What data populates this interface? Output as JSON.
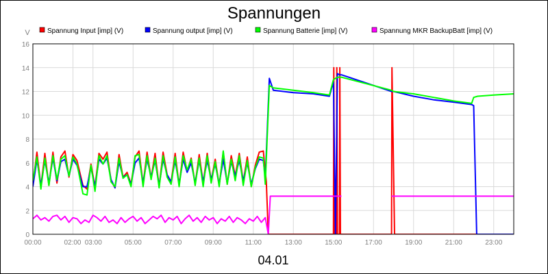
{
  "chart_data": {
    "type": "line",
    "title": "Spannungen",
    "ylabel": "V",
    "xlabel": "04.01",
    "ylim": [
      0,
      16
    ],
    "yticks": [
      0,
      2,
      4,
      6,
      8,
      10,
      12,
      14,
      16
    ],
    "xlim_hours": [
      0,
      24
    ],
    "xticks": [
      "00:00",
      "02:00",
      "03:00",
      "05:00",
      "07:00",
      "09:00",
      "11:00",
      "13:00",
      "15:00",
      "17:00",
      "19:00",
      "21:00",
      "23:00"
    ],
    "grid": true,
    "legend_position": "top",
    "series": [
      {
        "name": "Spannung Input [imp] (V)",
        "color": "#ff0000",
        "points": [
          [
            0.0,
            4.2
          ],
          [
            0.2,
            6.9
          ],
          [
            0.4,
            4.0
          ],
          [
            0.6,
            6.8
          ],
          [
            0.8,
            4.1
          ],
          [
            1.0,
            6.9
          ],
          [
            1.2,
            4.3
          ],
          [
            1.4,
            6.5
          ],
          [
            1.6,
            7.0
          ],
          [
            1.8,
            4.8
          ],
          [
            2.0,
            6.7
          ],
          [
            2.2,
            6.2
          ],
          [
            2.5,
            4.1
          ],
          [
            2.7,
            3.8
          ],
          [
            2.9,
            5.9
          ],
          [
            3.1,
            4.0
          ],
          [
            3.3,
            6.8
          ],
          [
            3.5,
            6.3
          ],
          [
            3.7,
            6.9
          ],
          [
            3.9,
            4.5
          ],
          [
            4.1,
            3.9
          ],
          [
            4.3,
            6.7
          ],
          [
            4.5,
            4.8
          ],
          [
            4.7,
            5.2
          ],
          [
            4.9,
            4.2
          ],
          [
            5.1,
            6.5
          ],
          [
            5.3,
            7.0
          ],
          [
            5.5,
            4.2
          ],
          [
            5.7,
            6.9
          ],
          [
            5.9,
            4.7
          ],
          [
            6.1,
            6.8
          ],
          [
            6.3,
            4.0
          ],
          [
            6.5,
            6.9
          ],
          [
            6.7,
            5.0
          ],
          [
            6.9,
            4.4
          ],
          [
            7.1,
            6.8
          ],
          [
            7.3,
            4.1
          ],
          [
            7.5,
            6.9
          ],
          [
            7.7,
            5.3
          ],
          [
            7.9,
            6.4
          ],
          [
            8.1,
            4.2
          ],
          [
            8.3,
            6.7
          ],
          [
            8.5,
            4.3
          ],
          [
            8.7,
            6.8
          ],
          [
            8.9,
            4.5
          ],
          [
            9.1,
            6.3
          ],
          [
            9.3,
            4.1
          ],
          [
            9.5,
            6.9
          ],
          [
            9.7,
            4.2
          ],
          [
            9.9,
            6.6
          ],
          [
            10.1,
            4.9
          ],
          [
            10.3,
            6.8
          ],
          [
            10.5,
            4.4
          ],
          [
            10.7,
            6.5
          ],
          [
            10.9,
            4.0
          ],
          [
            11.1,
            5.8
          ],
          [
            11.3,
            6.9
          ],
          [
            11.5,
            7.0
          ],
          [
            11.65,
            4.4
          ],
          [
            11.75,
            0.0
          ],
          [
            15.0,
            0.0
          ],
          [
            15.02,
            14.0
          ],
          [
            15.05,
            0.0
          ],
          [
            15.15,
            0.0
          ],
          [
            15.17,
            14.0
          ],
          [
            15.2,
            0.0
          ],
          [
            15.3,
            0.0
          ],
          [
            15.32,
            14.0
          ],
          [
            15.35,
            0.0
          ],
          [
            17.9,
            0.0
          ],
          [
            17.92,
            14.0
          ],
          [
            18.05,
            0.0
          ],
          [
            24.0,
            0.0
          ]
        ]
      },
      {
        "name": "Spannung output [imp] (V)",
        "color": "#0000ff",
        "points": [
          [
            0.0,
            4.0
          ],
          [
            0.2,
            6.3
          ],
          [
            0.4,
            4.1
          ],
          [
            0.6,
            6.2
          ],
          [
            0.8,
            4.3
          ],
          [
            1.0,
            6.4
          ],
          [
            1.2,
            4.5
          ],
          [
            1.4,
            6.1
          ],
          [
            1.6,
            6.3
          ],
          [
            1.8,
            4.9
          ],
          [
            2.0,
            6.3
          ],
          [
            2.2,
            5.8
          ],
          [
            2.5,
            4.0
          ],
          [
            2.7,
            4.0
          ],
          [
            2.9,
            5.6
          ],
          [
            3.1,
            4.0
          ],
          [
            3.3,
            6.3
          ],
          [
            3.5,
            5.9
          ],
          [
            3.7,
            6.4
          ],
          [
            3.9,
            4.6
          ],
          [
            4.1,
            3.9
          ],
          [
            4.3,
            6.1
          ],
          [
            4.5,
            4.8
          ],
          [
            4.7,
            5.0
          ],
          [
            4.9,
            4.2
          ],
          [
            5.1,
            6.0
          ],
          [
            5.3,
            6.4
          ],
          [
            5.5,
            4.3
          ],
          [
            5.7,
            6.3
          ],
          [
            5.9,
            4.8
          ],
          [
            6.1,
            6.2
          ],
          [
            6.3,
            4.1
          ],
          [
            6.5,
            6.3
          ],
          [
            6.7,
            5.0
          ],
          [
            6.9,
            4.4
          ],
          [
            7.1,
            6.2
          ],
          [
            7.3,
            4.2
          ],
          [
            7.5,
            6.3
          ],
          [
            7.7,
            5.2
          ],
          [
            7.9,
            6.0
          ],
          [
            8.1,
            4.3
          ],
          [
            8.3,
            6.2
          ],
          [
            8.5,
            4.4
          ],
          [
            8.7,
            6.2
          ],
          [
            8.9,
            4.6
          ],
          [
            9.1,
            5.9
          ],
          [
            9.3,
            4.2
          ],
          [
            9.5,
            6.3
          ],
          [
            9.7,
            4.3
          ],
          [
            9.9,
            6.1
          ],
          [
            10.1,
            4.9
          ],
          [
            10.3,
            6.2
          ],
          [
            10.5,
            4.5
          ],
          [
            10.7,
            6.0
          ],
          [
            10.9,
            4.2
          ],
          [
            11.1,
            5.5
          ],
          [
            11.3,
            6.3
          ],
          [
            11.5,
            6.2
          ],
          [
            11.6,
            4.7
          ],
          [
            11.8,
            13.1
          ],
          [
            12.0,
            12.1
          ],
          [
            13.0,
            11.9
          ],
          [
            14.0,
            11.8
          ],
          [
            14.8,
            11.6
          ],
          [
            15.0,
            12.8
          ],
          [
            15.1,
            0.0
          ],
          [
            15.2,
            13.5
          ],
          [
            15.3,
            13.4
          ],
          [
            15.4,
            13.4
          ],
          [
            17.9,
            12.0
          ],
          [
            18.0,
            12.0
          ],
          [
            19.0,
            11.6
          ],
          [
            20.0,
            11.3
          ],
          [
            21.0,
            11.1
          ],
          [
            21.9,
            10.9
          ],
          [
            22.0,
            10.8
          ],
          [
            22.15,
            0.0
          ],
          [
            24.0,
            0.0
          ]
        ]
      },
      {
        "name": "Spannung Batterie [imp] (V)",
        "color": "#00ff00",
        "points": [
          [
            0.0,
            4.5
          ],
          [
            0.2,
            6.5
          ],
          [
            0.4,
            3.8
          ],
          [
            0.6,
            6.4
          ],
          [
            0.8,
            4.1
          ],
          [
            1.0,
            6.6
          ],
          [
            1.2,
            4.6
          ],
          [
            1.4,
            6.3
          ],
          [
            1.6,
            6.6
          ],
          [
            1.8,
            4.9
          ],
          [
            2.0,
            6.5
          ],
          [
            2.2,
            5.9
          ],
          [
            2.5,
            3.4
          ],
          [
            2.7,
            3.3
          ],
          [
            2.9,
            5.8
          ],
          [
            3.1,
            3.6
          ],
          [
            3.3,
            6.6
          ],
          [
            3.5,
            5.9
          ],
          [
            3.7,
            6.6
          ],
          [
            3.9,
            4.4
          ],
          [
            4.1,
            4.0
          ],
          [
            4.3,
            6.4
          ],
          [
            4.5,
            4.7
          ],
          [
            4.7,
            5.0
          ],
          [
            4.9,
            4.0
          ],
          [
            5.1,
            6.6
          ],
          [
            5.3,
            6.7
          ],
          [
            5.5,
            4.0
          ],
          [
            5.7,
            6.6
          ],
          [
            5.9,
            4.6
          ],
          [
            6.1,
            6.4
          ],
          [
            6.3,
            3.9
          ],
          [
            6.5,
            6.6
          ],
          [
            6.7,
            4.8
          ],
          [
            6.9,
            4.2
          ],
          [
            7.1,
            6.5
          ],
          [
            7.3,
            4.0
          ],
          [
            7.5,
            6.6
          ],
          [
            7.7,
            5.4
          ],
          [
            7.9,
            6.3
          ],
          [
            8.1,
            4.1
          ],
          [
            8.3,
            6.4
          ],
          [
            8.5,
            4.0
          ],
          [
            8.7,
            6.6
          ],
          [
            8.9,
            4.3
          ],
          [
            9.1,
            6.1
          ],
          [
            9.3,
            4.0
          ],
          [
            9.5,
            7.0
          ],
          [
            9.7,
            4.2
          ],
          [
            9.9,
            6.3
          ],
          [
            10.1,
            4.5
          ],
          [
            10.3,
            6.6
          ],
          [
            10.5,
            4.1
          ],
          [
            10.7,
            6.2
          ],
          [
            10.9,
            4.0
          ],
          [
            11.1,
            5.6
          ],
          [
            11.3,
            6.5
          ],
          [
            11.5,
            6.4
          ],
          [
            11.6,
            4.2
          ],
          [
            11.8,
            12.5
          ],
          [
            12.0,
            12.3
          ],
          [
            13.0,
            12.1
          ],
          [
            14.0,
            11.9
          ],
          [
            14.8,
            11.7
          ],
          [
            15.0,
            13.0
          ],
          [
            15.2,
            13.2
          ],
          [
            15.4,
            13.2
          ],
          [
            17.9,
            12.1
          ],
          [
            18.0,
            12.0
          ],
          [
            19.0,
            11.8
          ],
          [
            20.0,
            11.5
          ],
          [
            21.0,
            11.2
          ],
          [
            21.9,
            11.0
          ],
          [
            22.0,
            11.5
          ],
          [
            22.2,
            11.6
          ],
          [
            23.0,
            11.7
          ],
          [
            24.0,
            11.8
          ]
        ]
      },
      {
        "name": "Spannung MKR BackupBatt [imp] (V)",
        "color": "#ff00ff",
        "points": [
          [
            0.0,
            1.3
          ],
          [
            0.2,
            1.6
          ],
          [
            0.4,
            1.2
          ],
          [
            0.6,
            1.4
          ],
          [
            0.8,
            1.1
          ],
          [
            1.0,
            1.5
          ],
          [
            1.2,
            1.6
          ],
          [
            1.4,
            1.2
          ],
          [
            1.6,
            1.5
          ],
          [
            1.8,
            1.0
          ],
          [
            2.0,
            1.4
          ],
          [
            2.2,
            1.3
          ],
          [
            2.4,
            0.9
          ],
          [
            2.6,
            1.2
          ],
          [
            2.8,
            1.0
          ],
          [
            3.0,
            1.6
          ],
          [
            3.2,
            1.4
          ],
          [
            3.4,
            1.1
          ],
          [
            3.6,
            1.5
          ],
          [
            3.8,
            1.0
          ],
          [
            4.0,
            1.2
          ],
          [
            4.2,
            0.9
          ],
          [
            4.4,
            1.4
          ],
          [
            4.6,
            1.0
          ],
          [
            4.8,
            1.3
          ],
          [
            5.0,
            1.5
          ],
          [
            5.2,
            1.1
          ],
          [
            5.4,
            1.4
          ],
          [
            5.6,
            0.9
          ],
          [
            5.8,
            1.2
          ],
          [
            6.0,
            1.5
          ],
          [
            6.2,
            1.3
          ],
          [
            6.4,
            1.6
          ],
          [
            6.6,
            1.0
          ],
          [
            6.8,
            1.4
          ],
          [
            7.0,
            1.2
          ],
          [
            7.2,
            1.5
          ],
          [
            7.4,
            0.9
          ],
          [
            7.6,
            1.3
          ],
          [
            7.8,
            1.6
          ],
          [
            8.0,
            1.1
          ],
          [
            8.2,
            1.4
          ],
          [
            8.4,
            1.0
          ],
          [
            8.6,
            1.5
          ],
          [
            8.8,
            1.2
          ],
          [
            9.0,
            1.4
          ],
          [
            9.2,
            0.9
          ],
          [
            9.4,
            1.3
          ],
          [
            9.6,
            1.1
          ],
          [
            9.8,
            1.5
          ],
          [
            10.0,
            1.0
          ],
          [
            10.2,
            1.4
          ],
          [
            10.4,
            1.2
          ],
          [
            10.6,
            0.9
          ],
          [
            10.8,
            1.3
          ],
          [
            11.0,
            1.1
          ],
          [
            11.2,
            1.5
          ],
          [
            11.4,
            1.0
          ],
          [
            11.6,
            1.4
          ],
          [
            11.75,
            0.0
          ],
          [
            11.85,
            3.2
          ],
          [
            15.4,
            3.2
          ]
        ]
      },
      {
        "name": "Spannung MKR BackupBatt [imp] (V)",
        "color": "#ff00ff",
        "points": [
          [
            17.9,
            3.2
          ],
          [
            24.0,
            3.2
          ]
        ]
      }
    ]
  }
}
